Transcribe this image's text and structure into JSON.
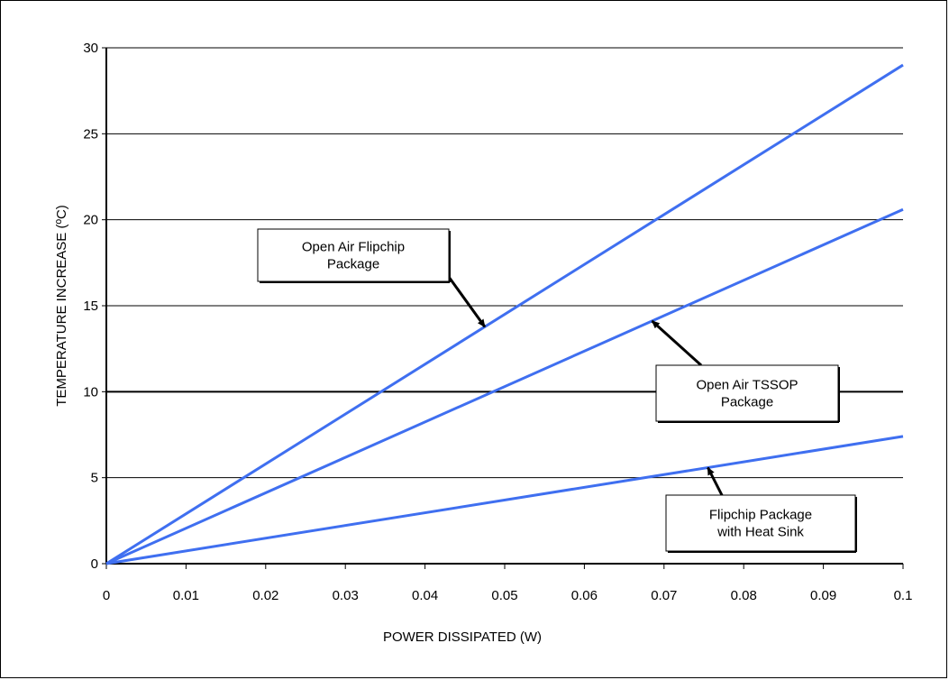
{
  "chart_data": {
    "type": "line",
    "title": "",
    "xlabel": "POWER DISSIPATED (W)",
    "ylabel": "TEMPERATURE INCREASE (ºC)",
    "xlim": [
      0,
      0.1
    ],
    "ylim": [
      0,
      30
    ],
    "x_ticks": [
      "0",
      "0.01",
      "0.02",
      "0.03",
      "0.04",
      "0.05",
      "0.06",
      "0.07",
      "0.08",
      "0.09",
      "0.1"
    ],
    "y_ticks": [
      "0",
      "5",
      "10",
      "15",
      "20",
      "25",
      "30"
    ],
    "grid": "horizontal",
    "line_color": "#3f6ff0",
    "series": [
      {
        "x": [
          0,
          0.1
        ],
        "y": [
          0,
          29.0
        ]
      },
      {
        "x": [
          0,
          0.1
        ],
        "y": [
          0,
          20.6
        ]
      },
      {
        "x": [
          0,
          0.1
        ],
        "y": [
          0,
          7.4
        ]
      }
    ],
    "annotations": [
      {
        "lines": [
          "Open Air Flipchip",
          "Package"
        ],
        "series_index": 0
      },
      {
        "lines": [
          "Open Air TSSOP",
          "Package"
        ],
        "series_index": 1
      },
      {
        "lines": [
          "Flipchip Package",
          "with Heat Sink"
        ],
        "series_index": 2
      }
    ]
  }
}
